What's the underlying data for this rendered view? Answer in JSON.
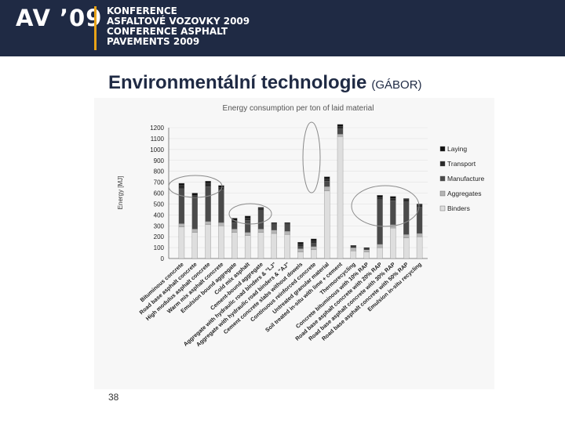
{
  "header": {
    "logo_text": "AV ’09",
    "lines": [
      "KONFERENCE",
      "ASFALTOVÉ VOZOVKY 2009",
      "CONFERENCE ASPHALT",
      "PAVEMENTS 2009"
    ]
  },
  "slide": {
    "title": "Environmentální technologie",
    "subtitle": "(GÁBOR)",
    "page_number": "38"
  },
  "colors": {
    "header_bg": "#1f2a44",
    "accent": "#e8a317",
    "title": "#1f2a44"
  },
  "chart_data": {
    "type": "bar",
    "stacked": true,
    "title": "Energy consumption per ton of laid material",
    "ylabel": "Energy [MJ]",
    "xlabel": "",
    "ylim": [
      0,
      1200
    ],
    "yticks": [
      0,
      100,
      200,
      300,
      400,
      500,
      600,
      700,
      800,
      900,
      1000,
      1100,
      1200
    ],
    "legend_position": "right",
    "categories": [
      "Bituminous concrete",
      "Road base asphalt concrete",
      "High modulus asphalt concrete",
      "Warm mix asphalt concrete",
      "Emulsion bound aggregate",
      "Cold mix asphalt",
      "Cement-bound aggregate",
      "Aggregate with hydraulic road binders & \"LJ\"",
      "Aggregate with hydraulic road binders & \"AJ\"",
      "Cement concrete slabs without dowels",
      "Continuous reinforced concrete",
      "Untreated granular material",
      "Soil treated in-situ with lime + cement",
      "Thermorecycling",
      "Concrete bituminous with 10% RAP",
      "Road base asphalt concrete with 20% RAP",
      "Road base asphalt concrete with 30% RAP",
      "Road base asphalt concrete with 50% RAP",
      "Emulsion in-situ recycling"
    ],
    "series": [
      {
        "name": "Binders",
        "color": "#dedede",
        "values": [
          290,
          240,
          310,
          300,
          240,
          210,
          240,
          230,
          220,
          60,
          80,
          620,
          1120,
          70,
          60,
          100,
          280,
          190,
          200
        ]
      },
      {
        "name": "Aggregates",
        "color": "#b5b5b5",
        "values": [
          30,
          30,
          30,
          30,
          30,
          30,
          30,
          30,
          30,
          30,
          30,
          40,
          20,
          30,
          20,
          30,
          30,
          30,
          30
        ]
      },
      {
        "name": "Manufacture",
        "color": "#4a4a4a",
        "values": [
          320,
          280,
          320,
          300,
          60,
          110,
          170,
          50,
          60,
          20,
          30,
          50,
          50,
          0,
          0,
          410,
          220,
          300,
          240
        ]
      },
      {
        "name": "Transport",
        "color": "#2a2a2a",
        "values": [
          30,
          30,
          30,
          20,
          20,
          20,
          20,
          10,
          10,
          20,
          20,
          20,
          20,
          10,
          10,
          20,
          20,
          20,
          20
        ]
      },
      {
        "name": "Laying",
        "color": "#111111",
        "values": [
          20,
          20,
          20,
          20,
          20,
          20,
          10,
          10,
          10,
          20,
          20,
          20,
          20,
          10,
          10,
          20,
          20,
          10,
          10
        ]
      }
    ]
  }
}
